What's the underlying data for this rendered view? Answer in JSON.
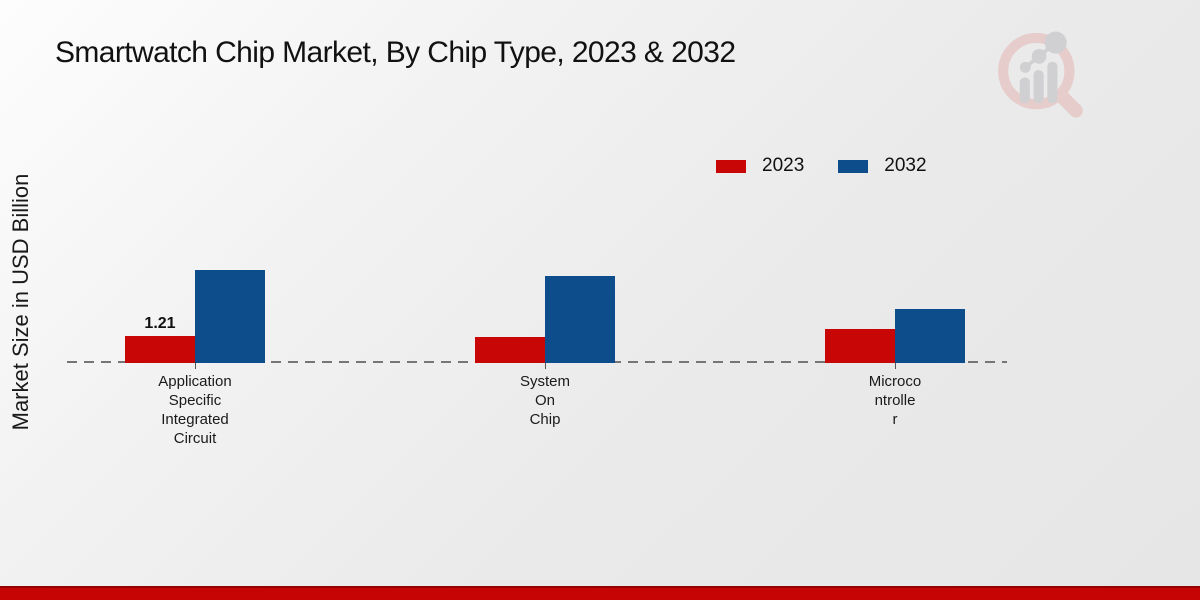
{
  "chart_data": {
    "type": "bar",
    "title": "Smartwatch Chip Market, By Chip Type, 2023 & 2032",
    "ylabel": "Market Size in USD Billion",
    "xlabel": "",
    "categories": [
      "Application Specific Integrated Circuit",
      "System On Chip",
      "Microcontroller"
    ],
    "category_lines": [
      [
        "Application",
        "Specific",
        "Integrated",
        "Circuit"
      ],
      [
        "System",
        "On",
        "Chip"
      ],
      [
        "Microco",
        "ntrolle",
        "r"
      ]
    ],
    "series": [
      {
        "name": "2023",
        "color": "#c90606",
        "values": [
          1.21,
          1.15,
          1.52
        ],
        "labels": [
          "1.21",
          "",
          ""
        ]
      },
      {
        "name": "2032",
        "color": "#0d4d8c",
        "values": [
          4.17,
          3.88,
          2.42
        ],
        "labels": [
          "",
          "",
          ""
        ]
      }
    ],
    "legend_position": "top-right",
    "grid": false,
    "baseline_style": "dashed",
    "ylim": [
      0,
      5
    ]
  },
  "branding": {
    "watermark_icon": "magnifier-bar-chart-logo",
    "footer_bar_color": "#c60404",
    "footer_line_color": "#930101"
  }
}
